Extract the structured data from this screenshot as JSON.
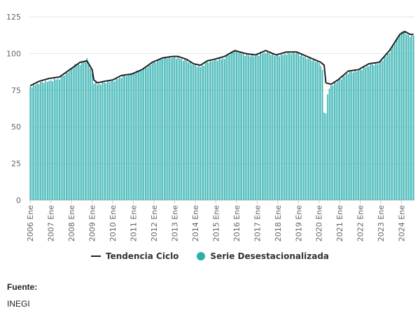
{
  "chart_data": {
    "type": "bar",
    "title": "",
    "xlabel": "",
    "ylabel": "",
    "ylim": [
      0,
      125
    ],
    "yticks": [
      0,
      25,
      50,
      75,
      100,
      125
    ],
    "grid": true,
    "legend_position": "bottom",
    "x_tick_labels": [
      "2006 Ene",
      "2007 Ene",
      "2008 Ene",
      "2009 Ene",
      "2010 Ene",
      "2011 Ene",
      "2012 Ene",
      "2013 Ene",
      "2014 Ene",
      "2015 Ene",
      "2016 Ene",
      "2017 Ene",
      "2018 Ene",
      "2019 Ene",
      "2020 Ene",
      "2021 Ene",
      "2022 Ene",
      "2023 Ene",
      "2024 Ene"
    ],
    "x_start": "2006-01",
    "x_end": "2024-08",
    "series": [
      {
        "name": "Tendencia Ciclo",
        "kind": "line",
        "color": "#222222",
        "anchors": [
          [
            "2006-01",
            78
          ],
          [
            "2006-06",
            81
          ],
          [
            "2006-12",
            83
          ],
          [
            "2007-06",
            84
          ],
          [
            "2007-12",
            89
          ],
          [
            "2008-06",
            94
          ],
          [
            "2008-10",
            95
          ],
          [
            "2009-01",
            89
          ],
          [
            "2009-02",
            82
          ],
          [
            "2009-04",
            80
          ],
          [
            "2009-08",
            81
          ],
          [
            "2010-01",
            82
          ],
          [
            "2010-06",
            85
          ],
          [
            "2010-12",
            86
          ],
          [
            "2011-06",
            89
          ],
          [
            "2011-12",
            94
          ],
          [
            "2012-06",
            97
          ],
          [
            "2012-12",
            98
          ],
          [
            "2013-03",
            98
          ],
          [
            "2013-08",
            96
          ],
          [
            "2013-12",
            93
          ],
          [
            "2014-04",
            92
          ],
          [
            "2014-08",
            95
          ],
          [
            "2014-12",
            96
          ],
          [
            "2015-06",
            98
          ],
          [
            "2015-12",
            102
          ],
          [
            "2016-06",
            100
          ],
          [
            "2016-12",
            99
          ],
          [
            "2017-06",
            102
          ],
          [
            "2017-12",
            99
          ],
          [
            "2018-06",
            101
          ],
          [
            "2018-12",
            101
          ],
          [
            "2019-06",
            98
          ],
          [
            "2019-12",
            95
          ],
          [
            "2020-02",
            94
          ],
          [
            "2020-04",
            92
          ],
          [
            "2020-05",
            80
          ],
          [
            "2020-08",
            79
          ],
          [
            "2020-12",
            82
          ],
          [
            "2021-06",
            88
          ],
          [
            "2021-12",
            89
          ],
          [
            "2022-06",
            93
          ],
          [
            "2022-12",
            94
          ],
          [
            "2023-06",
            102
          ],
          [
            "2023-12",
            113
          ],
          [
            "2024-03",
            115
          ],
          [
            "2024-06",
            113
          ],
          [
            "2024-08",
            113
          ]
        ]
      },
      {
        "name": "Serie Desestacionalizada",
        "kind": "bar",
        "color": "#2aaeae",
        "anchors": [
          [
            "2006-01",
            77
          ],
          [
            "2006-06",
            80
          ],
          [
            "2006-12",
            81
          ],
          [
            "2007-06",
            83
          ],
          [
            "2007-12",
            88
          ],
          [
            "2008-03",
            92
          ],
          [
            "2008-06",
            93
          ],
          [
            "2008-10",
            96
          ],
          [
            "2009-01",
            86
          ],
          [
            "2009-02",
            80
          ],
          [
            "2009-04",
            79
          ],
          [
            "2009-08",
            80
          ],
          [
            "2010-01",
            81
          ],
          [
            "2010-06",
            84
          ],
          [
            "2010-12",
            86
          ],
          [
            "2011-06",
            89
          ],
          [
            "2011-12",
            93
          ],
          [
            "2012-06",
            97
          ],
          [
            "2012-12",
            97
          ],
          [
            "2013-03",
            97
          ],
          [
            "2013-08",
            95
          ],
          [
            "2013-12",
            92
          ],
          [
            "2014-04",
            91
          ],
          [
            "2014-08",
            94
          ],
          [
            "2014-12",
            95
          ],
          [
            "2015-06",
            97
          ],
          [
            "2015-12",
            102
          ],
          [
            "2016-06",
            99
          ],
          [
            "2016-12",
            98
          ],
          [
            "2017-06",
            101
          ],
          [
            "2017-12",
            98
          ],
          [
            "2018-06",
            100
          ],
          [
            "2018-12",
            100
          ],
          [
            "2019-06",
            97
          ],
          [
            "2019-12",
            94
          ],
          [
            "2020-02",
            92
          ],
          [
            "2020-03",
            88
          ],
          [
            "2020-04",
            60
          ],
          [
            "2020-05",
            59
          ],
          [
            "2020-06",
            73
          ],
          [
            "2020-08",
            78
          ],
          [
            "2020-12",
            81
          ],
          [
            "2021-06",
            87
          ],
          [
            "2021-12",
            88
          ],
          [
            "2022-06",
            92
          ],
          [
            "2022-12",
            93
          ],
          [
            "2023-06",
            101
          ],
          [
            "2023-12",
            113
          ],
          [
            "2024-02",
            116
          ],
          [
            "2024-03",
            114
          ],
          [
            "2024-06",
            112
          ],
          [
            "2024-08",
            112
          ]
        ]
      }
    ]
  },
  "source": {
    "label": "Fuente:",
    "value": "INEGI"
  }
}
